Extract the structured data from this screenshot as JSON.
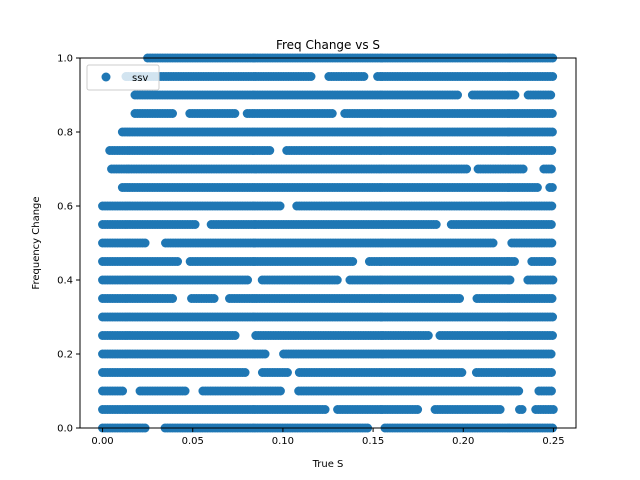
{
  "chart_data": {
    "type": "scatter",
    "title": "Freq Change vs S",
    "xlabel": "True S",
    "ylabel": "Frequency Change",
    "xlim": [
      -0.0125,
      0.2625
    ],
    "ylim": [
      0.0,
      1.0
    ],
    "xticks": [
      0.0,
      0.05,
      0.1,
      0.15,
      0.2,
      0.25
    ],
    "xtick_labels": [
      "0.00",
      "0.05",
      "0.10",
      "0.15",
      "0.20",
      "0.25"
    ],
    "yticks": [
      0.0,
      0.2,
      0.4,
      0.6,
      0.8,
      1.0
    ],
    "ytick_labels": [
      "0.0",
      "0.2",
      "0.4",
      "0.6",
      "0.8",
      "1.0"
    ],
    "grid": false,
    "legend": {
      "position": "top-left",
      "entries": [
        "ssv"
      ]
    },
    "series": [
      {
        "name": "ssv",
        "color": "#1f77b4",
        "marker": "circle",
        "x_range": [
          0.0,
          0.25
        ],
        "y_levels": [
          0.0,
          0.05,
          0.1,
          0.15,
          0.2,
          0.25,
          0.3,
          0.35,
          0.4,
          0.45,
          0.5,
          0.55,
          0.6,
          0.65,
          0.7,
          0.75,
          0.8,
          0.85,
          0.9,
          0.95,
          1.0
        ],
        "level_min_x": [
          0.0,
          0.0,
          0.0,
          0.0,
          0.0,
          0.0,
          0.0,
          0.0,
          0.0,
          0.0,
          0.0,
          0.0,
          0.0,
          0.011,
          0.005,
          0.004,
          0.011,
          0.018,
          0.018,
          0.013,
          0.025
        ]
      }
    ]
  }
}
